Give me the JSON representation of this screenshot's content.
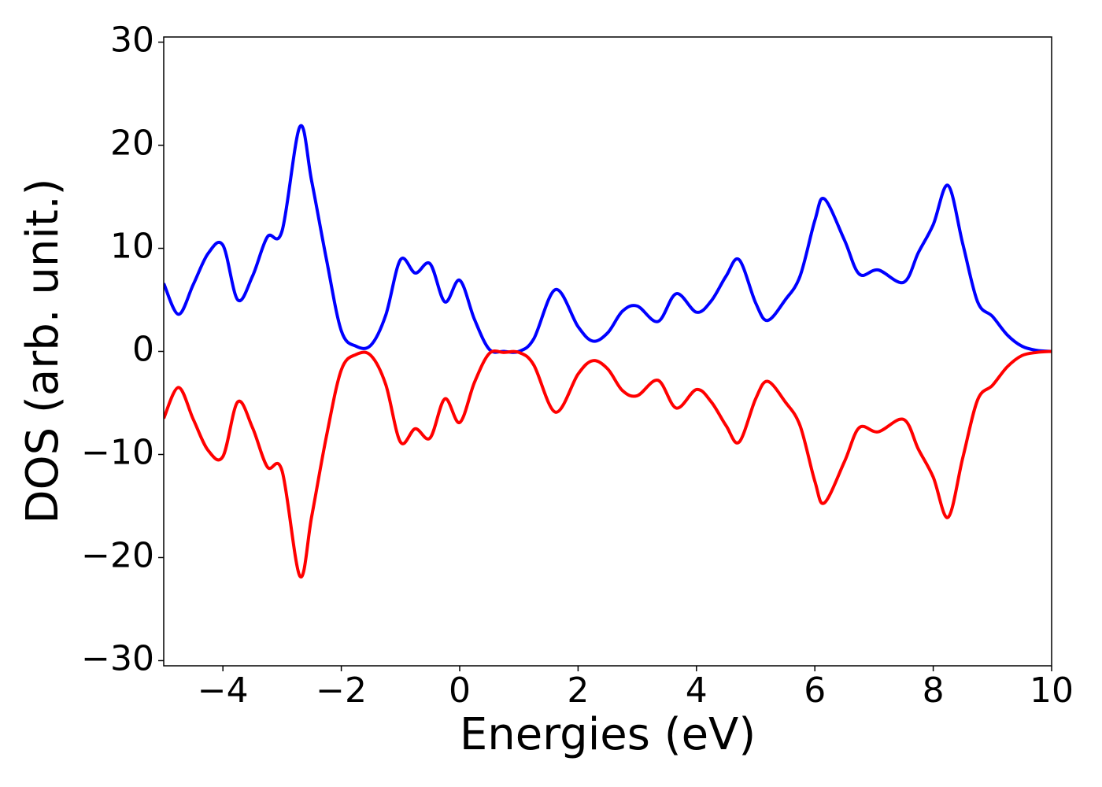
{
  "chart_data": {
    "type": "line",
    "xlabel": "Energies (eV)",
    "ylabel": "DOS (arb. unit.)",
    "x": [
      -5,
      -4.75,
      -4.5,
      -4.25,
      -4,
      -3.75,
      -3.5,
      -3.25,
      -3,
      -2.7,
      -2.5,
      -2.25,
      -2,
      -1.75,
      -1.5,
      -1.25,
      -1,
      -0.75,
      -0.5,
      -0.25,
      0,
      0.25,
      0.5,
      0.75,
      1,
      1.25,
      1.62,
      2,
      2.25,
      2.5,
      2.75,
      3,
      3.35,
      3.66,
      4,
      4.25,
      4.5,
      4.72,
      5,
      5.2,
      5.5,
      5.75,
      6,
      6.16,
      6.5,
      6.75,
      7.07,
      7.5,
      7.75,
      8,
      8.25,
      8.5,
      8.75,
      9,
      9.25,
      9.5,
      9.75,
      10
    ],
    "series": [
      {
        "color": "#0000ff",
        "values": [
          6.6,
          3.6,
          6.5,
          9.5,
          10.3,
          5.0,
          7.3,
          11.1,
          11.7,
          21.8,
          16.5,
          8.9,
          2.0,
          0.5,
          0.6,
          3.5,
          8.9,
          7.6,
          8.5,
          4.8,
          6.9,
          3.1,
          0.2,
          0,
          0,
          1.2,
          6.0,
          2.4,
          1.0,
          1.8,
          3.9,
          4.4,
          2.9,
          5.6,
          3.8,
          4.9,
          7.3,
          8.9,
          4.7,
          3.0,
          5.0,
          7.3,
          12.7,
          14.8,
          10.8,
          7.5,
          7.9,
          6.7,
          9.6,
          12.3,
          16.1,
          10.4,
          4.8,
          3.4,
          1.6,
          0.5,
          0.1,
          0
        ]
      },
      {
        "color": "#ff0000",
        "values": [
          -6.5,
          -3.5,
          -6.6,
          -9.6,
          -10.2,
          -4.9,
          -7.4,
          -11.2,
          -11.6,
          -21.8,
          -16.0,
          -8.2,
          -1.8,
          -0.3,
          -0.4,
          -3.2,
          -8.8,
          -7.5,
          -8.4,
          -4.6,
          -6.9,
          -3.0,
          -0.2,
          -0.1,
          -0.1,
          -1.3,
          -5.9,
          -2.2,
          -0.9,
          -1.7,
          -3.8,
          -4.3,
          -2.8,
          -5.5,
          -3.7,
          -4.9,
          -7.2,
          -8.8,
          -4.6,
          -2.9,
          -4.9,
          -7.2,
          -12.6,
          -14.7,
          -10.7,
          -7.4,
          -7.8,
          -6.6,
          -9.5,
          -12.2,
          -16.1,
          -10.3,
          -4.7,
          -3.3,
          -1.5,
          -0.4,
          -0.1,
          0
        ]
      }
    ],
    "xlim": [
      -5,
      10
    ],
    "xticks": [
      {
        "value": -4,
        "label": "−4"
      },
      {
        "value": -2,
        "label": "−2"
      },
      0,
      2,
      4,
      6,
      8,
      10
    ],
    "ylim": [
      -30.5,
      30.5
    ],
    "yticks": [
      {
        "value": -30,
        "label": "−30"
      },
      {
        "value": -20,
        "label": "−20"
      },
      {
        "value": -10,
        "label": "−10"
      },
      0,
      10,
      20,
      30
    ],
    "grid": false
  }
}
